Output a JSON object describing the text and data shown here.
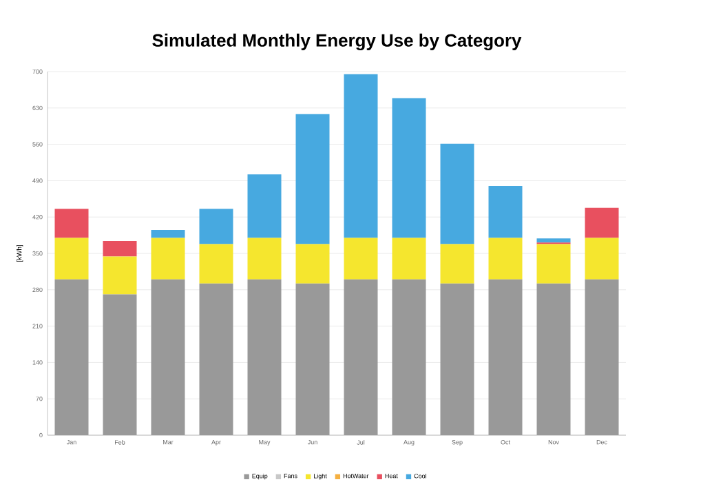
{
  "chart_data": {
    "type": "bar",
    "title": "Simulated Monthly Energy Use by Category",
    "ylabel": "[kWh]",
    "categories": [
      "Jan",
      "Feb",
      "Mar",
      "Apr",
      "May",
      "Jun",
      "Jul",
      "Aug",
      "Sep",
      "Oct",
      "Nov",
      "Dec"
    ],
    "stacked": true,
    "ylim": [
      0,
      700
    ],
    "yticks": [
      0,
      70,
      140,
      210,
      280,
      350,
      420,
      490,
      560,
      630,
      700
    ],
    "grid": "y",
    "legend": "bottom",
    "series": [
      {
        "name": "Equip",
        "color": "#999999",
        "values": [
          300,
          271,
          300,
          292,
          300,
          292,
          300,
          300,
          292,
          300,
          292,
          300
        ]
      },
      {
        "name": "Fans",
        "color": "#c8c8c8",
        "values": [
          0,
          0,
          0,
          0,
          0,
          0,
          0,
          0,
          0,
          0,
          0,
          0
        ]
      },
      {
        "name": "Light",
        "color": "#f5e62e",
        "values": [
          80,
          73,
          80,
          76,
          80,
          76,
          80,
          80,
          76,
          80,
          76,
          80
        ]
      },
      {
        "name": "HotWater",
        "color": "#f5b041",
        "values": [
          0,
          0,
          0,
          0,
          0,
          0,
          0,
          0,
          0,
          0,
          0,
          0
        ]
      },
      {
        "name": "Heat",
        "color": "#e8505f",
        "values": [
          56,
          30,
          0,
          0,
          0,
          0,
          0,
          0,
          0,
          0,
          3,
          58
        ]
      },
      {
        "name": "Cool",
        "color": "#47a9e0",
        "values": [
          0,
          0,
          15,
          68,
          122,
          250,
          315,
          269,
          193,
          100,
          8,
          0
        ]
      }
    ]
  }
}
